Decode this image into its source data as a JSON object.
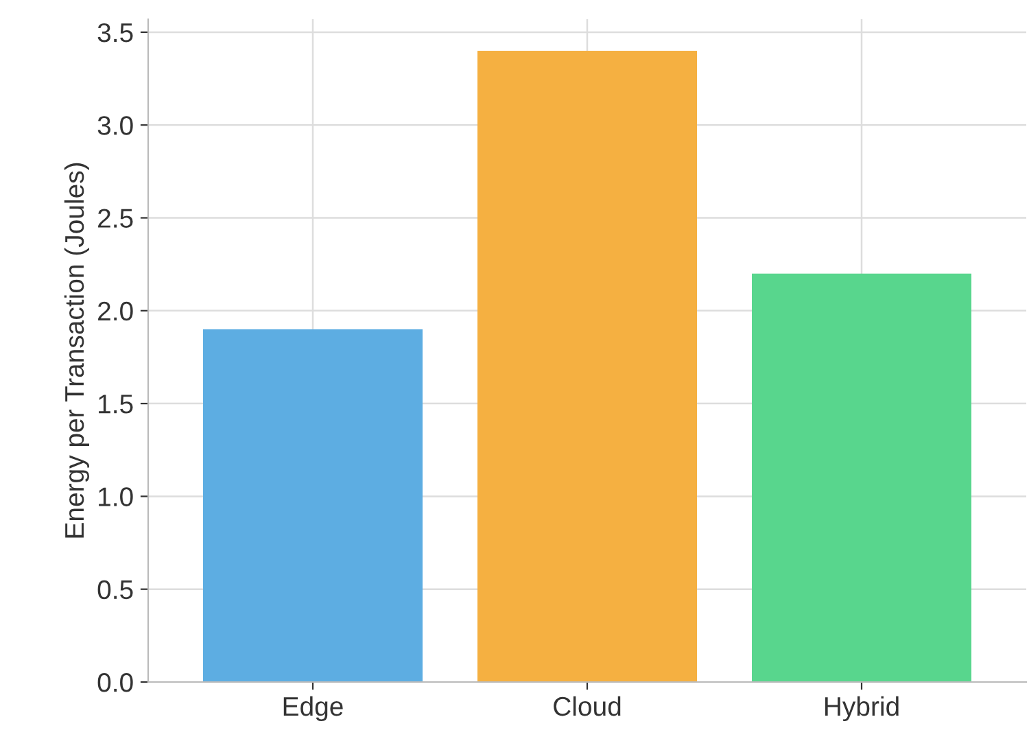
{
  "chart_data": {
    "type": "bar",
    "ylabel": "Energy per Transaction (Joules)",
    "categories": [
      "Edge",
      "Cloud",
      "Hybrid"
    ],
    "values": [
      1.9,
      3.4,
      2.2
    ],
    "colors": [
      "#5dade2",
      "#f5b041",
      "#58d68d"
    ],
    "ylim": [
      0,
      3.57
    ],
    "yticks": [
      {
        "value": 0,
        "label": "0.0"
      },
      0.5,
      {
        "value": 1,
        "label": "1.0"
      },
      1.5,
      {
        "value": 2,
        "label": "2.0"
      },
      2.5,
      {
        "value": 3,
        "label": "3.0"
      },
      3.5
    ],
    "grid": true
  }
}
